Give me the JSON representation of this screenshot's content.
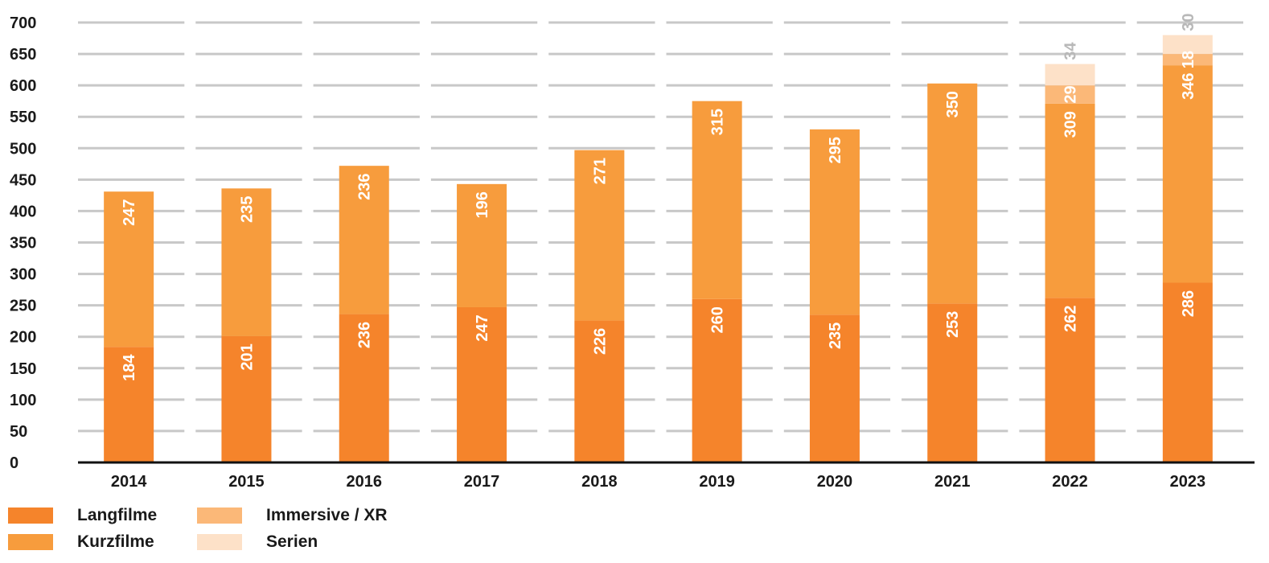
{
  "chart_data": {
    "type": "bar",
    "stacked": true,
    "orientation": "vertical",
    "categories": [
      "2014",
      "2015",
      "2016",
      "2017",
      "2018",
      "2019",
      "2020",
      "2021",
      "2022",
      "2023"
    ],
    "series": [
      {
        "name": "Langfilme",
        "color": "#f5842b",
        "values": [
          184,
          201,
          236,
          247,
          226,
          260,
          235,
          253,
          262,
          286
        ]
      },
      {
        "name": "Kurzfilme",
        "color": "#f79c3d",
        "values": [
          247,
          235,
          236,
          196,
          271,
          315,
          295,
          350,
          309,
          346
        ]
      },
      {
        "name": "Immersive / XR",
        "color": "#fbb878",
        "values": [
          null,
          null,
          null,
          null,
          null,
          null,
          null,
          null,
          29,
          18
        ]
      },
      {
        "name": "Serien",
        "color": "#fde1c8",
        "values": [
          null,
          null,
          null,
          null,
          null,
          null,
          null,
          null,
          34,
          30
        ]
      }
    ],
    "ylim": [
      0,
      700
    ],
    "yticks": [
      0,
      50,
      100,
      150,
      200,
      250,
      300,
      350,
      400,
      450,
      500,
      550,
      600,
      650,
      700
    ],
    "grid": true,
    "data_labels": true,
    "legend_position": "bottom-left",
    "title": "",
    "xlabel": "",
    "ylabel": ""
  }
}
